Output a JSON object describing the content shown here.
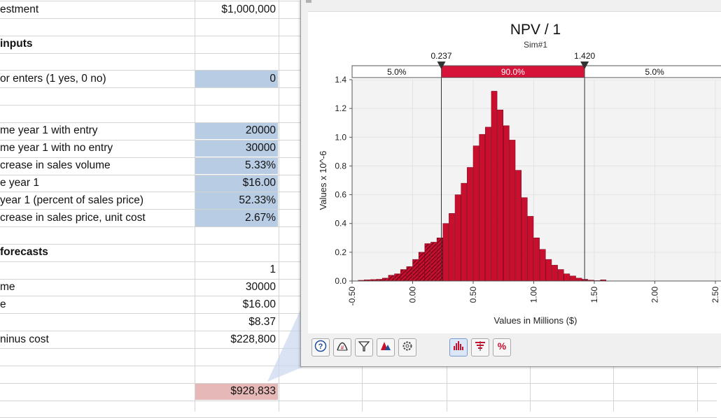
{
  "sheet": {
    "rows": [
      {
        "label": "estment",
        "value": "$1,000,000",
        "bold": false,
        "input": false
      },
      {
        "label": "",
        "value": "",
        "bold": false,
        "input": false
      },
      {
        "label": "inputs",
        "value": "",
        "bold": true,
        "input": false
      },
      {
        "label": "",
        "value": "",
        "bold": false,
        "input": false
      },
      {
        "label": "or enters (1 yes, 0 no)",
        "value": "0",
        "bold": false,
        "input": true
      },
      {
        "label": "",
        "value": "",
        "bold": false,
        "input": false
      },
      {
        "label": "",
        "value": "",
        "bold": false,
        "input": false
      },
      {
        "label": "me year 1 with entry",
        "value": "20000",
        "bold": false,
        "input": true
      },
      {
        "label": "me year 1 with no entry",
        "value": "30000",
        "bold": false,
        "input": true
      },
      {
        "label": "crease in sales volume",
        "value": "5.33%",
        "bold": false,
        "input": true
      },
      {
        "label": "e year 1",
        "value": "$16.00",
        "bold": false,
        "input": true
      },
      {
        "label": "year 1 (percent of sales price)",
        "value": "52.33%",
        "bold": false,
        "input": true
      },
      {
        "label": "crease in sales price, unit cost",
        "value": "2.67%",
        "bold": false,
        "input": true
      },
      {
        "label": "",
        "value": "",
        "bold": false,
        "input": false
      },
      {
        "label": "forecasts",
        "value": "",
        "bold": true,
        "input": false
      },
      {
        "label": "",
        "value": "1",
        "bold": false,
        "input": false
      },
      {
        "label": "me",
        "value": "30000",
        "bold": false,
        "input": false
      },
      {
        "label": "e",
        "value": "$16.00",
        "bold": false,
        "input": false
      },
      {
        "label": "",
        "value": "$8.37",
        "bold": false,
        "input": false
      },
      {
        "label": "ninus cost",
        "value": "$228,800",
        "bold": false,
        "input": false
      },
      {
        "label": "",
        "value": "",
        "bold": false,
        "input": false
      },
      {
        "label": "",
        "value": "",
        "bold": false,
        "input": false
      },
      {
        "label": "",
        "value": "$928,833",
        "bold": false,
        "input": false,
        "output": true
      }
    ]
  },
  "colors": {
    "input_fill": "#b8cce4",
    "output_fill": "#e6b8b7",
    "bar": "#c8102e",
    "bar_edge": "#7a0019",
    "band_center": "#d6143a",
    "grid": "#e3e3e3"
  },
  "chart_data": {
    "type": "bar",
    "title": "NPV / 1",
    "subtitle": "Sim#1",
    "xlabel": "Values in Millions ($)",
    "ylabel": "Values x 10^-6",
    "xlim": [
      -0.5,
      2.5
    ],
    "ylim": [
      0,
      1.4
    ],
    "yticks": [
      "0.0",
      "0.2",
      "0.4",
      "0.6",
      "0.8",
      "1.0",
      "1.2",
      "1.4"
    ],
    "xticks": [
      "-0.50",
      "0.00",
      "0.50",
      "1.00",
      "1.50",
      "2.00",
      "2.50"
    ],
    "bin_width": 0.05,
    "bins_start": -0.45,
    "values": [
      0.005,
      0.008,
      0.01,
      0.012,
      0.02,
      0.04,
      0.05,
      0.08,
      0.1,
      0.15,
      0.2,
      0.26,
      0.27,
      0.3,
      0.4,
      0.47,
      0.6,
      0.68,
      0.79,
      0.94,
      1.02,
      1.07,
      1.32,
      1.19,
      1.08,
      0.98,
      0.77,
      0.58,
      0.45,
      0.3,
      0.22,
      0.15,
      0.11,
      0.08,
      0.05,
      0.035,
      0.02,
      0.012,
      0.006,
      0.003,
      0.008
    ],
    "lower_marker": "0.237",
    "upper_marker": "1.420",
    "lower_value": 0.237,
    "upper_value": 1.42,
    "band_left": "5.0%",
    "band_mid": "90.0%",
    "band_right": "5.0%"
  },
  "toolbar": {
    "left": [
      "help-icon",
      "fit-distribution-icon",
      "filter-icon",
      "graph-options-icon",
      "settings-icon"
    ],
    "right": [
      "histogram-icon",
      "tornado-icon",
      "percent-icon"
    ]
  }
}
